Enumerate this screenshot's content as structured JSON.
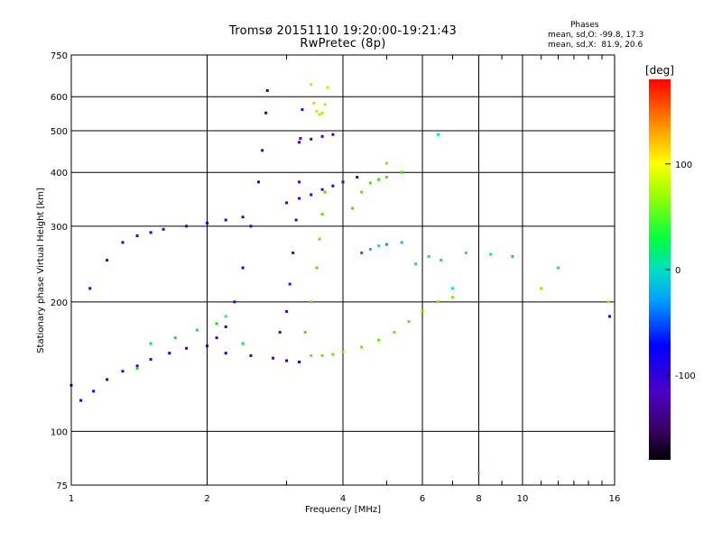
{
  "header": {
    "title_line1": "Tromsø 20151110 19:20:00-19:21:43",
    "title_line2": "RwPretec (8p)"
  },
  "stats": {
    "heading": "Phases",
    "line_o": "mean, sd,O: -99.8, 17.3",
    "line_x": "mean, sd,X:  81.9, 20.6"
  },
  "chart_data": {
    "type": "scatter",
    "xlabel": "Frequency [MHz]",
    "ylabel": "Stationary phase Virtual Height [km]",
    "x_scale": "log",
    "y_scale": "log",
    "xlim": [
      1,
      16
    ],
    "ylim": [
      75,
      750
    ],
    "x_ticks": [
      1,
      2,
      4,
      6,
      8,
      10,
      16
    ],
    "x_tick_labels": [
      "1",
      "2",
      "4",
      "6",
      "8",
      "10",
      "16"
    ],
    "x_minor_ticks": [
      3,
      5,
      7,
      9,
      11,
      12,
      13,
      14,
      15
    ],
    "y_ticks": [
      75,
      100,
      200,
      300,
      400,
      500,
      600,
      750
    ],
    "y_tick_labels": [
      "75",
      "100",
      "200",
      "300",
      "400",
      "500",
      "600",
      "750"
    ],
    "grid": true,
    "colorbar": {
      "label": "[deg]",
      "range": [
        -180,
        180
      ],
      "ticks": [
        100,
        0,
        -100
      ],
      "tick_labels": [
        "100",
        "0",
        "-100"
      ]
    },
    "series": [
      {
        "points": [
          [
            1.0,
            128,
            -95
          ],
          [
            1.05,
            118,
            -105
          ],
          [
            1.12,
            124,
            -110
          ],
          [
            1.2,
            132,
            -100
          ],
          [
            1.3,
            138,
            -120
          ],
          [
            1.4,
            142,
            -110
          ],
          [
            1.5,
            147,
            -100
          ],
          [
            1.65,
            152,
            -95
          ],
          [
            1.8,
            156,
            -90
          ],
          [
            2.0,
            158,
            -100
          ],
          [
            2.2,
            152,
            -95
          ],
          [
            2.5,
            150,
            -100
          ],
          [
            2.8,
            148,
            -110
          ],
          [
            3.0,
            146,
            -100
          ],
          [
            3.2,
            145,
            -95
          ]
        ]
      },
      {
        "points": [
          [
            1.1,
            215,
            -110
          ],
          [
            1.2,
            250,
            -110
          ],
          [
            1.3,
            275,
            -100
          ],
          [
            1.4,
            285,
            -105
          ],
          [
            1.5,
            290,
            -100
          ],
          [
            1.6,
            295,
            -110
          ],
          [
            1.8,
            300,
            -100
          ],
          [
            2.0,
            305,
            -95
          ],
          [
            2.2,
            310,
            -100
          ],
          [
            2.4,
            315,
            -105
          ]
        ]
      },
      {
        "points": [
          [
            2.1,
            165,
            -95
          ],
          [
            2.2,
            175,
            -100
          ],
          [
            2.3,
            200,
            -105
          ],
          [
            2.4,
            240,
            -100
          ],
          [
            2.5,
            300,
            -110
          ],
          [
            2.6,
            380,
            -100
          ],
          [
            2.65,
            450,
            -105
          ],
          [
            2.7,
            550,
            -100
          ],
          [
            2.72,
            620,
            -95
          ]
        ]
      },
      {
        "points": [
          [
            2.9,
            170,
            -130
          ],
          [
            3.0,
            190,
            -140
          ],
          [
            3.05,
            220,
            -135
          ],
          [
            3.1,
            260,
            -130
          ],
          [
            3.15,
            310,
            -140
          ],
          [
            3.2,
            380,
            -145
          ],
          [
            3.22,
            480,
            -135
          ],
          [
            3.25,
            560,
            -130
          ]
        ]
      },
      {
        "points": [
          [
            3.0,
            340,
            -120
          ],
          [
            3.2,
            348,
            -125
          ],
          [
            3.4,
            355,
            -120
          ],
          [
            3.6,
            365,
            -115
          ],
          [
            3.8,
            372,
            -110
          ],
          [
            4.0,
            380,
            -115
          ],
          [
            4.3,
            390,
            -110
          ]
        ]
      },
      {
        "points": [
          [
            3.2,
            470,
            -120
          ],
          [
            3.4,
            478,
            -118
          ],
          [
            3.6,
            485,
            -120
          ],
          [
            3.8,
            490,
            -115
          ]
        ]
      },
      {
        "points": [
          [
            3.4,
            150,
            80
          ],
          [
            3.6,
            150,
            85
          ],
          [
            3.8,
            151,
            80
          ],
          [
            4.0,
            153,
            90
          ],
          [
            4.4,
            157,
            85
          ],
          [
            4.8,
            163,
            80
          ],
          [
            5.2,
            170,
            85
          ],
          [
            5.6,
            180,
            80
          ],
          [
            6.0,
            190,
            85
          ],
          [
            6.5,
            200,
            90
          ],
          [
            7.0,
            205,
            95
          ]
        ]
      },
      {
        "points": [
          [
            3.3,
            170,
            75
          ],
          [
            3.4,
            200,
            80
          ],
          [
            3.5,
            240,
            75
          ],
          [
            3.55,
            280,
            85
          ],
          [
            3.6,
            320,
            80
          ],
          [
            3.65,
            360,
            75
          ]
        ]
      },
      {
        "points": [
          [
            3.4,
            640,
            110
          ],
          [
            3.45,
            580,
            105
          ],
          [
            3.5,
            555,
            110
          ],
          [
            3.55,
            545,
            108
          ],
          [
            3.6,
            550,
            105
          ],
          [
            3.65,
            575,
            110
          ],
          [
            3.7,
            630,
            112
          ]
        ]
      },
      {
        "points": [
          [
            4.2,
            330,
            70
          ],
          [
            4.4,
            360,
            75
          ],
          [
            4.6,
            378,
            72
          ],
          [
            4.8,
            385,
            70
          ],
          [
            5.0,
            390,
            75
          ],
          [
            5.4,
            400,
            72
          ]
        ]
      },
      {
        "points": [
          [
            4.4,
            260,
            -40
          ],
          [
            4.6,
            265,
            -20
          ],
          [
            4.8,
            270,
            -10
          ],
          [
            5.0,
            272,
            -30
          ],
          [
            5.4,
            275,
            -20
          ],
          [
            5.8,
            245,
            -15
          ],
          [
            6.2,
            255,
            10
          ],
          [
            6.6,
            250,
            20
          ],
          [
            7.0,
            215,
            -10
          ]
        ]
      },
      {
        "points": [
          [
            1.5,
            160,
            20
          ],
          [
            1.7,
            165,
            40
          ],
          [
            1.9,
            172,
            30
          ],
          [
            2.1,
            178,
            50
          ],
          [
            2.4,
            160,
            35
          ],
          [
            2.2,
            185,
            -10
          ],
          [
            1.4,
            140,
            60
          ]
        ]
      },
      {
        "points": [
          [
            7.5,
            260,
            -10
          ],
          [
            8.5,
            258,
            15
          ],
          [
            9.5,
            255,
            40
          ],
          [
            11.0,
            215,
            95
          ],
          [
            12.0,
            240,
            20
          ],
          [
            15.5,
            200,
            100
          ],
          [
            15.6,
            185,
            -110
          ],
          [
            6.5,
            490,
            -5
          ],
          [
            5.0,
            420,
            130
          ],
          [
            8.0,
            80,
            140
          ]
        ]
      }
    ]
  }
}
